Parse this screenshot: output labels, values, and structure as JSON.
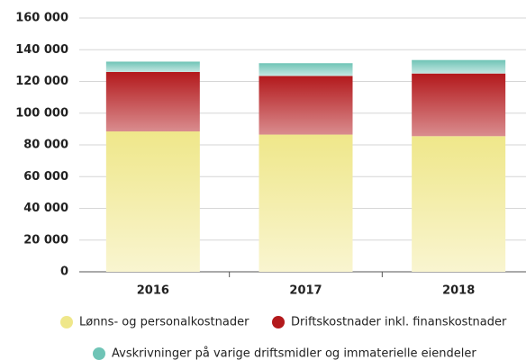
{
  "chart_data": {
    "type": "stacked-bar",
    "categories": [
      "2016",
      "2017",
      "2018"
    ],
    "series": [
      {
        "name": "Lønns- og personalkostnader",
        "color": "#efe78a",
        "values": [
          88500,
          86500,
          85500
        ]
      },
      {
        "name": "Driftskostnader inkl. finanskostnader",
        "color": "#b3191c",
        "values": [
          37500,
          37000,
          39500
        ]
      },
      {
        "name": "Avskrivninger på varige driftsmidler og immaterielle eiendeler",
        "color": "#6fc4b6",
        "values": [
          6500,
          8000,
          8500
        ]
      }
    ],
    "ylim": [
      0,
      160000
    ],
    "yticks": [
      0,
      {
        "value": 20000,
        "label": "20 000"
      },
      {
        "value": 40000,
        "label": "40 000"
      },
      {
        "value": 60000,
        "label": "60 000"
      },
      {
        "value": 80000,
        "label": "80 000"
      },
      {
        "value": 100000,
        "label": "100 000"
      },
      {
        "value": 120000,
        "label": "120 000"
      },
      {
        "value": 140000,
        "label": "140 000"
      },
      {
        "value": 160000,
        "label": "160 000"
      }
    ],
    "grid": true
  }
}
